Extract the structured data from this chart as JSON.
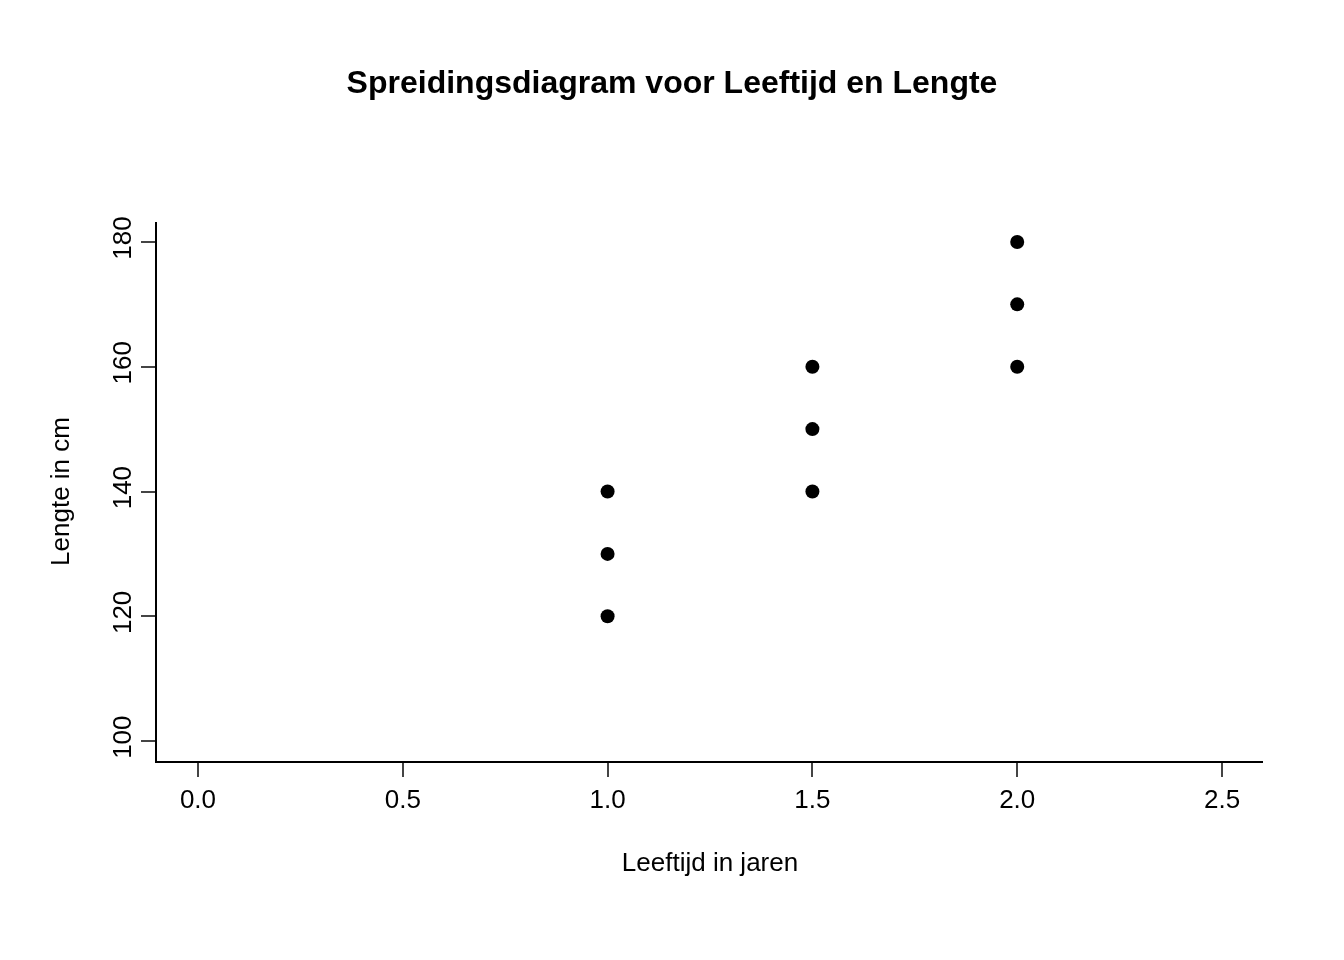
{
  "chart_data": {
    "type": "scatter",
    "title": "Spreidingsdiagram voor Leeftijd en Lengte",
    "xlabel": "Leeftijd in jaren",
    "ylabel": "Lengte in cm",
    "x": [
      1,
      1,
      1,
      1.5,
      1.5,
      1.5,
      2,
      2,
      2
    ],
    "series": [
      {
        "color": "#000000",
        "values": [
          120,
          130,
          140,
          140,
          150,
          160,
          160,
          170,
          180
        ]
      }
    ],
    "xlim": [
      -0.1,
      2.6
    ],
    "ylim": [
      96.8,
      183.2
    ],
    "xticks": [
      {
        "value": 0,
        "label": "0.0"
      },
      {
        "value": 0.5,
        "label": "0.5"
      },
      {
        "value": 1,
        "label": "1.0"
      },
      {
        "value": 1.5,
        "label": "1.5"
      },
      {
        "value": 2,
        "label": "2.0"
      },
      {
        "value": 2.5,
        "label": "2.5"
      }
    ],
    "yticks": [
      100,
      120,
      140,
      160,
      180
    ],
    "marker": "circle"
  }
}
